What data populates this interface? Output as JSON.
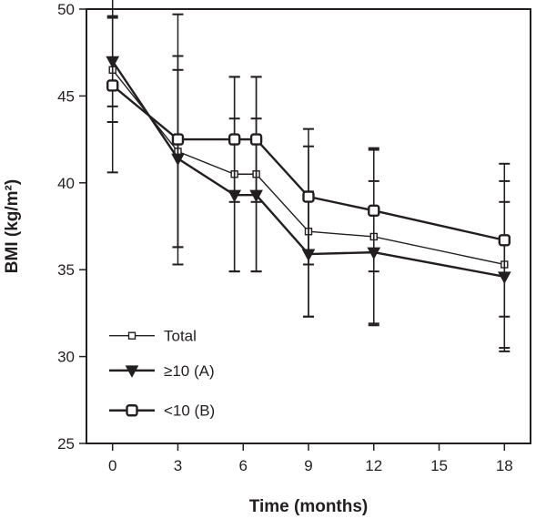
{
  "chart_data": {
    "type": "line",
    "title": "",
    "xlabel": "Time (months)",
    "ylabel": "BMI (kg/m²)",
    "xlim": [
      -1.2,
      19.2
    ],
    "ylim": [
      25,
      50
    ],
    "xticks": [
      0,
      3,
      6,
      9,
      12,
      15,
      18
    ],
    "yticks": [
      25,
      30,
      35,
      40,
      45,
      50
    ],
    "grid": false,
    "legend_position": "bottom-left",
    "series": [
      {
        "name": "Total",
        "marker": "small-square",
        "x": [
          0,
          3,
          5.6,
          6.6,
          9,
          12,
          18
        ],
        "y": [
          46.5,
          41.8,
          40.5,
          40.5,
          37.2,
          36.9,
          35.3
        ],
        "err": [
          3.0,
          5.5,
          5.6,
          5.6,
          4.9,
          5.1,
          4.8
        ]
      },
      {
        "name": "≥10 (A)",
        "marker": "triangle-down",
        "x": [
          0,
          3,
          5.6,
          6.6,
          9,
          12,
          18
        ],
        "y": [
          47.0,
          41.4,
          39.3,
          39.3,
          35.9,
          36.0,
          34.6
        ],
        "err": [
          2.6,
          5.1,
          4.4,
          4.4,
          3.6,
          4.1,
          4.3
        ]
      },
      {
        "name": "<10 (B)",
        "marker": "square",
        "x": [
          0,
          3,
          5.6,
          6.6,
          9,
          12,
          18
        ],
        "y": [
          45.6,
          42.5,
          42.5,
          42.5,
          39.2,
          38.4,
          36.7
        ],
        "err": [
          5.0,
          7.2,
          3.6,
          3.6,
          3.9,
          3.5,
          4.4
        ]
      }
    ]
  }
}
